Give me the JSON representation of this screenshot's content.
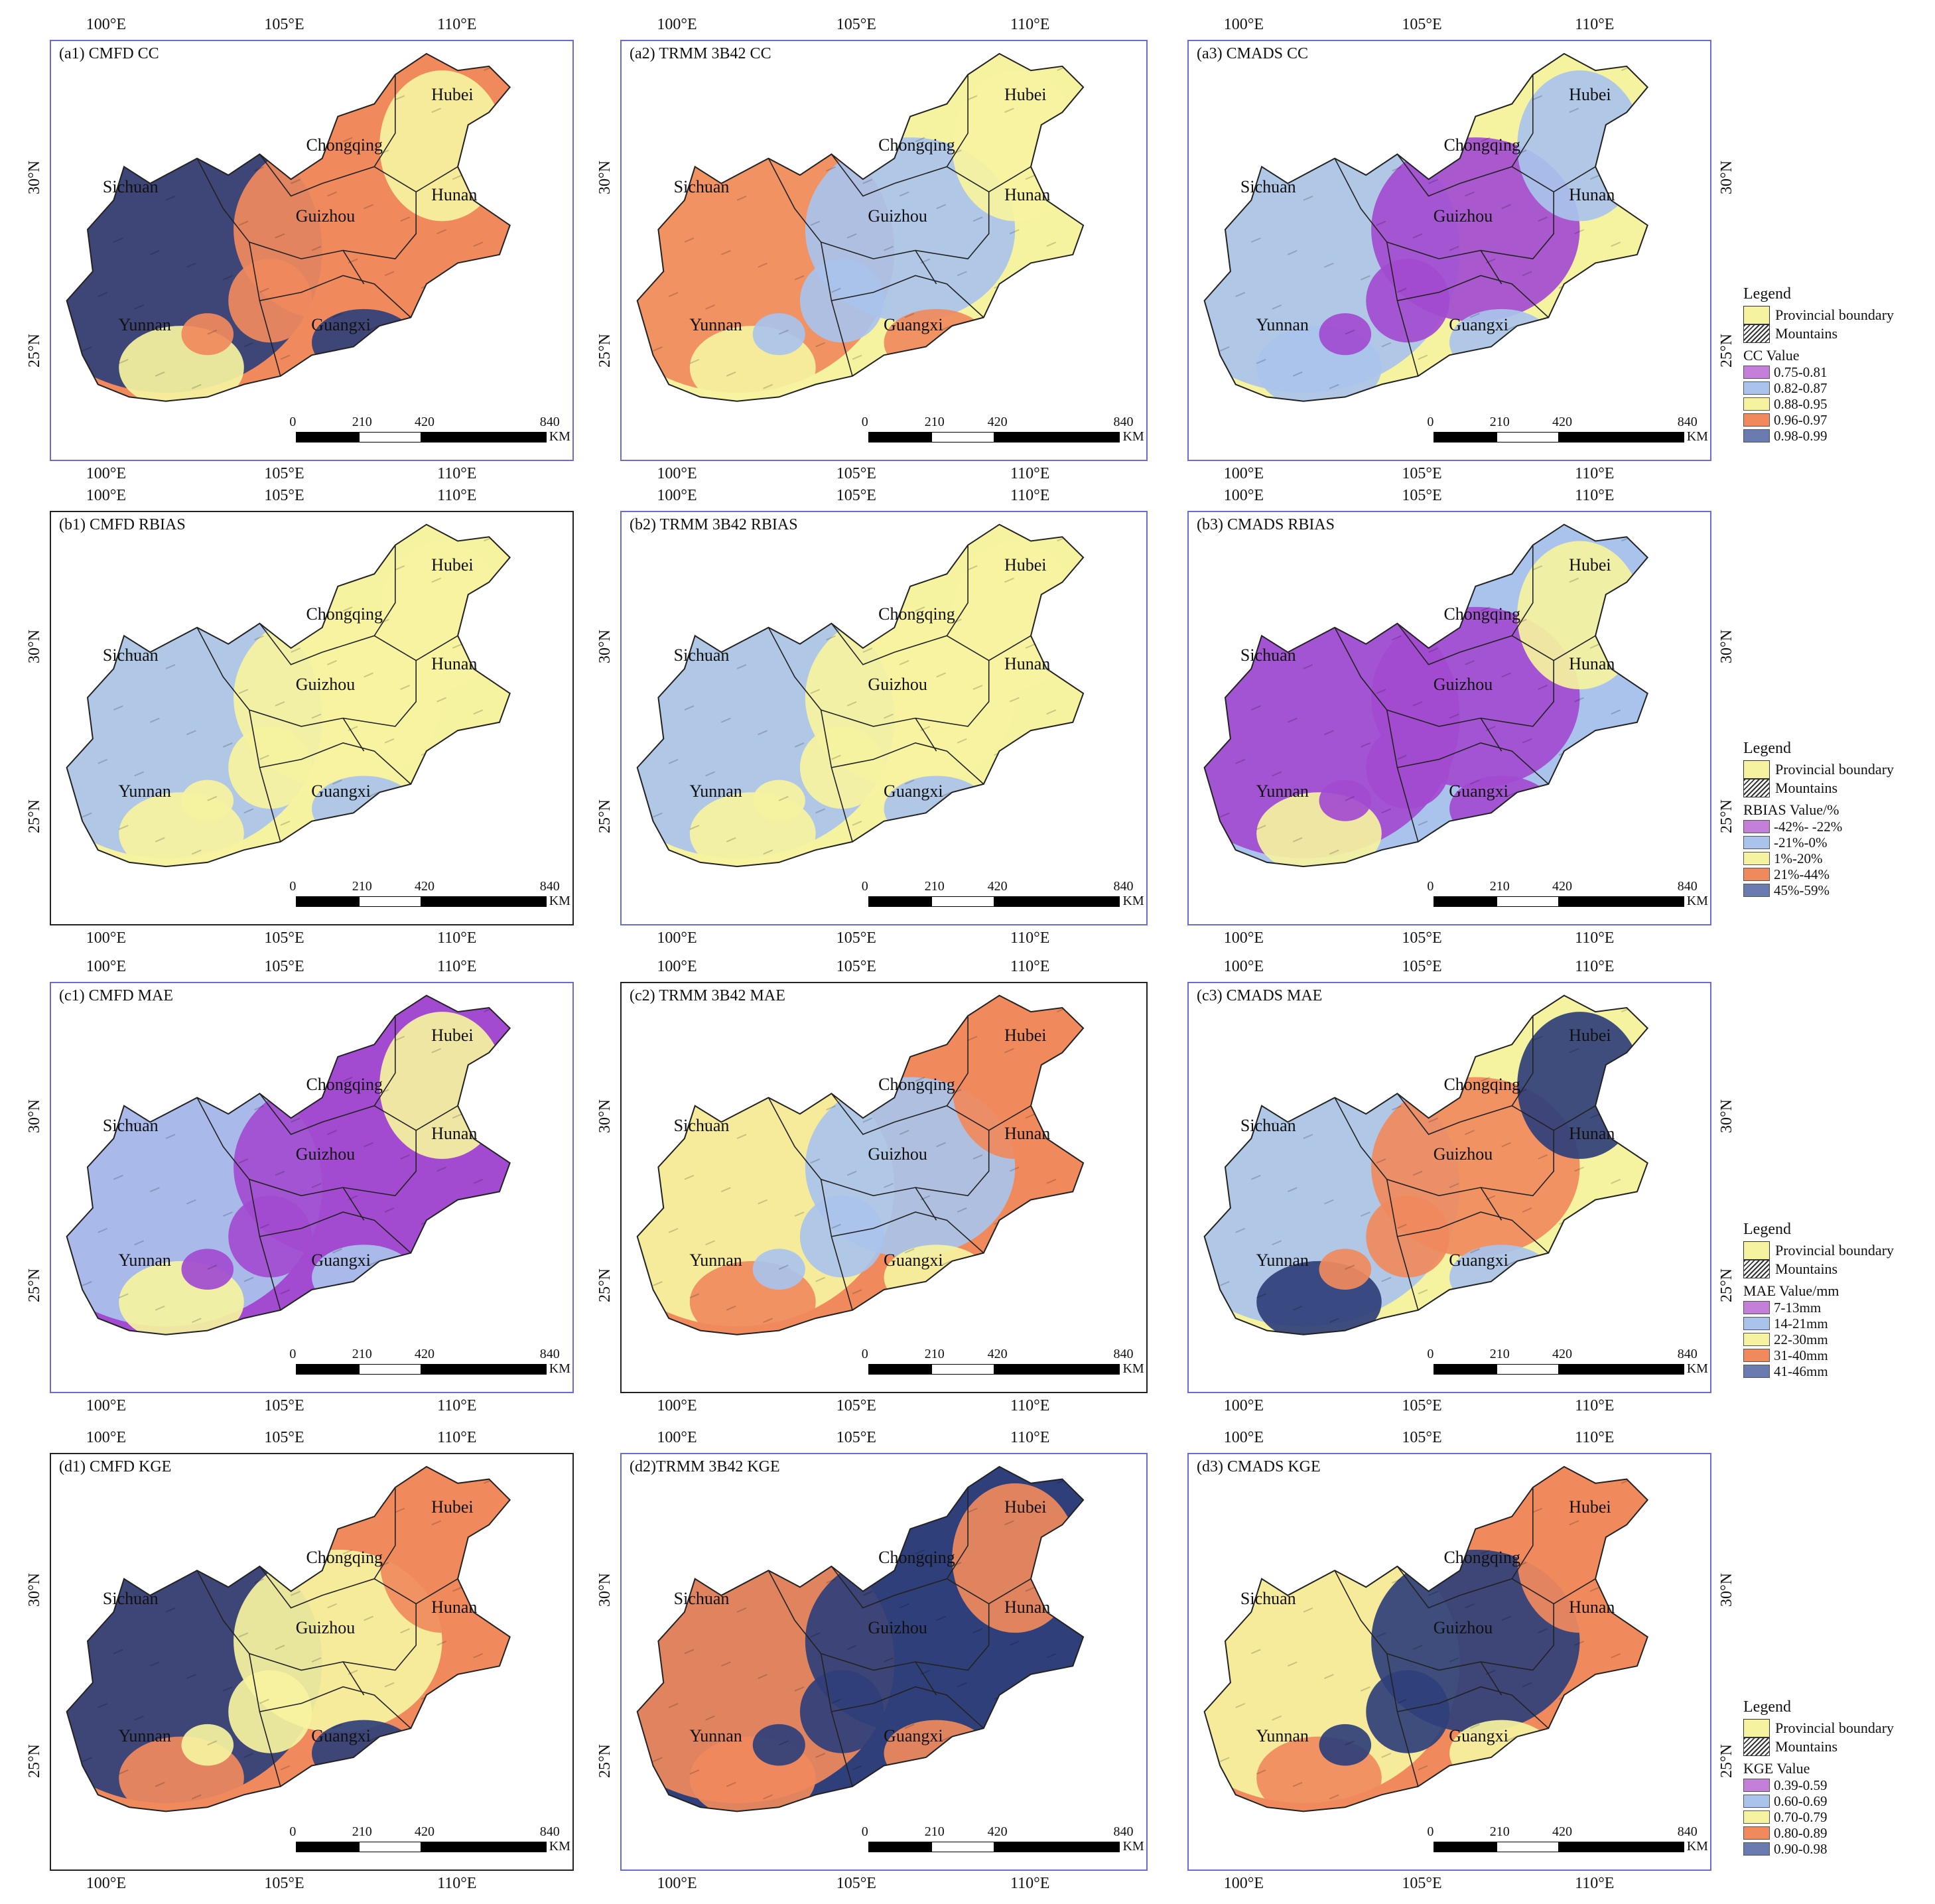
{
  "figure": {
    "lon_labels": [
      "100°E",
      "105°E",
      "110°E"
    ],
    "lat_labels": [
      "30°N",
      "25°N"
    ],
    "scalebar": {
      "labels": [
        "0",
        "210",
        "420",
        "840"
      ],
      "unit": "KM"
    },
    "provinces": [
      "Hubei",
      "Chongqing",
      "Sichuan",
      "Guizhou",
      "Hunan",
      "Yunnan",
      "Guangxi"
    ]
  },
  "panels": [
    {
      "id": "a1",
      "title": "(a1) CMFD CC",
      "scheme": [
        "#f08a5d",
        "#2f3f7a",
        "#f08a5d",
        "#f6f3a0"
      ]
    },
    {
      "id": "a2",
      "title": "(a2) TRMM 3B42 CC",
      "scheme": [
        "#f6f3a0",
        "#f08a5d",
        "#a9c3ec",
        "#f6f3a0"
      ]
    },
    {
      "id": "a3",
      "title": "(a3) CMADS CC",
      "scheme": [
        "#f6f3a0",
        "#a9c3ec",
        "#a24bd0",
        "#a9c3ec"
      ]
    },
    {
      "id": "b1",
      "title": "(b1) CMFD RBIAS",
      "scheme": [
        "#f6f3a0",
        "#a9c3ec",
        "#f6f3a0",
        "#f6f3a0"
      ]
    },
    {
      "id": "b2",
      "title": "(b2) TRMM 3B42 RBIAS",
      "scheme": [
        "#f6f3a0",
        "#a9c3ec",
        "#f6f3a0",
        "#f6f3a0"
      ]
    },
    {
      "id": "b3",
      "title": "(b3) CMADS RBIAS",
      "scheme": [
        "#a9c3ec",
        "#a24bd0",
        "#a24bd0",
        "#f6f3a0"
      ]
    },
    {
      "id": "c1",
      "title": "(c1) CMFD MAE",
      "scheme": [
        "#a24bd0",
        "#a9c3ec",
        "#a24bd0",
        "#f6f3a0"
      ]
    },
    {
      "id": "c2",
      "title": "(c2) TRMM 3B42 MAE",
      "scheme": [
        "#f08a5d",
        "#f6f3a0",
        "#a9c3ec",
        "#f08a5d"
      ]
    },
    {
      "id": "c3",
      "title": "(c3) CMADS MAE",
      "scheme": [
        "#f6f3a0",
        "#a9c3ec",
        "#f08a5d",
        "#2f3f7a"
      ]
    },
    {
      "id": "d1",
      "title": "(d1) CMFD KGE",
      "scheme": [
        "#f08a5d",
        "#2f3f7a",
        "#f6f3a0",
        "#f08a5d"
      ]
    },
    {
      "id": "d2",
      "title": "(d2)TRMM 3B42 KGE",
      "scheme": [
        "#2f3f7a",
        "#f08a5d",
        "#2f3f7a",
        "#f08a5d"
      ]
    },
    {
      "id": "d3",
      "title": "(d3) CMADS KGE",
      "scheme": [
        "#f08a5d",
        "#f6f3a0",
        "#2f3f7a",
        "#f08a5d"
      ]
    }
  ],
  "legends": [
    {
      "title": "Legend",
      "boundary": "Provincial boundary",
      "mountains": "Mountains",
      "value_title": "CC Value",
      "classes": [
        [
          "#c47fd9",
          "0.75-0.81"
        ],
        [
          "#a9c3ec",
          "0.82-0.87"
        ],
        [
          "#f6f3a0",
          "0.88-0.95"
        ],
        [
          "#f08a5d",
          "0.96-0.97"
        ],
        [
          "#6a7bb0",
          "0.98-0.99"
        ]
      ]
    },
    {
      "title": "Legend",
      "boundary": "Provincial boundary",
      "mountains": "Mountains",
      "value_title": "RBIAS Value/%",
      "classes": [
        [
          "#c47fd9",
          "-42%- -22%"
        ],
        [
          "#a9c3ec",
          "-21%-0%"
        ],
        [
          "#f6f3a0",
          "1%-20%"
        ],
        [
          "#f08a5d",
          "21%-44%"
        ],
        [
          "#6a7bb0",
          "45%-59%"
        ]
      ]
    },
    {
      "title": "Legend",
      "boundary": "Provincial boundary",
      "mountains": "Mountains",
      "value_title": "MAE Value/mm",
      "classes": [
        [
          "#c47fd9",
          "7-13mm"
        ],
        [
          "#a9c3ec",
          "14-21mm"
        ],
        [
          "#f6f3a0",
          "22-30mm"
        ],
        [
          "#f08a5d",
          "31-40mm"
        ],
        [
          "#6a7bb0",
          "41-46mm"
        ]
      ]
    },
    {
      "title": "Legend",
      "boundary": "Provincial boundary",
      "mountains": "Mountains",
      "value_title": "KGE Value",
      "classes": [
        [
          "#c47fd9",
          "0.39-0.59"
        ],
        [
          "#a9c3ec",
          "0.60-0.69"
        ],
        [
          "#f6f3a0",
          "0.70-0.79"
        ],
        [
          "#f08a5d",
          "0.80-0.89"
        ],
        [
          "#6a7bb0",
          "0.90-0.98"
        ]
      ]
    }
  ]
}
